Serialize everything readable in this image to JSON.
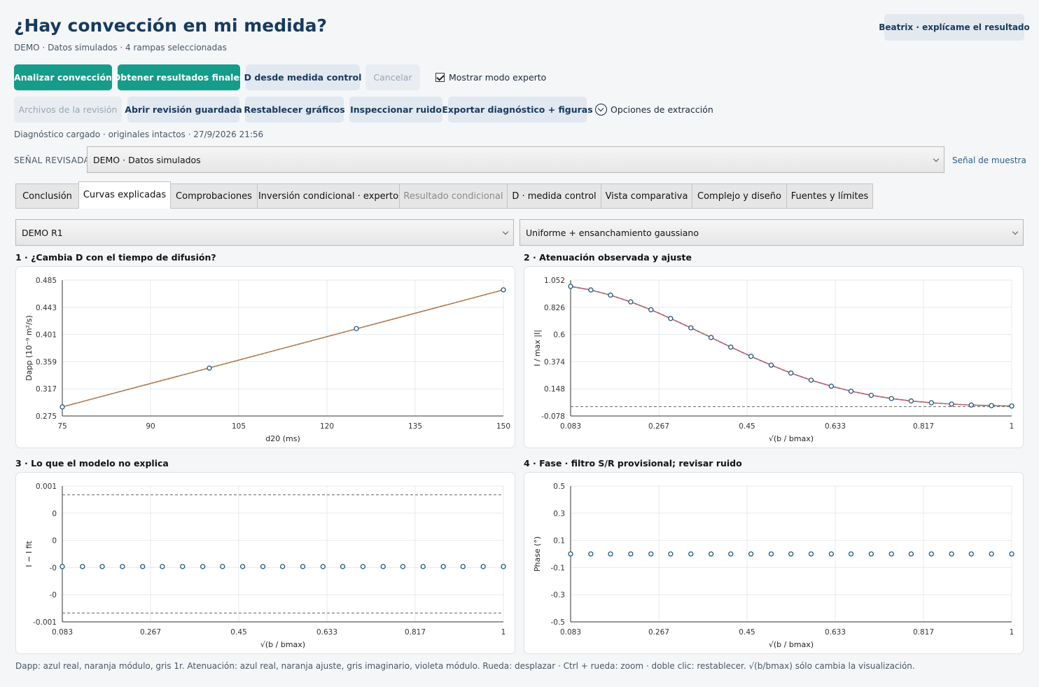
{
  "header": {
    "title": "¿Hay convección en mi medida?",
    "subtitle": "DEMO · Datos simulados · 4 rampas seleccionadas",
    "assistant_button": "Beatrix · explícame el resultado"
  },
  "toolbar1": {
    "analyze": "Analizar convección",
    "final_results": "Obtener resultados finales",
    "d_control": "D desde medida control",
    "cancel": "Cancelar",
    "expert_mode": "Mostrar modo experto",
    "expert_checked": true
  },
  "toolbar2": {
    "review_files": "Archivos de la revisión",
    "open_saved": "Abrir revisión guardada",
    "reset_graphs": "Restablecer gráficos",
    "inspect_noise": "Inspeccionar ruido",
    "export": "Exportar diagnóstico + figuras",
    "extraction_options": "Opciones de extracción"
  },
  "status": "Diagnóstico cargado · originales intactos · 27/9/2026 21:56",
  "signal": {
    "label": "SEÑAL REVISADA",
    "value": "DEMO · Datos simulados",
    "sample_link": "Señal de muestra"
  },
  "tabs": [
    {
      "label": "Conclusión",
      "state": "normal"
    },
    {
      "label": "Curvas explicadas",
      "state": "active"
    },
    {
      "label": "Comprobaciones",
      "state": "normal"
    },
    {
      "label": "Inversión condicional · experto",
      "state": "normal"
    },
    {
      "label": "Resultado condicional",
      "state": "disabled"
    },
    {
      "label": "D · medida control",
      "state": "normal"
    },
    {
      "label": "Vista comparativa",
      "state": "normal"
    },
    {
      "label": "Complejo y diseño",
      "state": "normal"
    },
    {
      "label": "Fuentes y límites",
      "state": "normal"
    }
  ],
  "selectors": {
    "ramp": "DEMO R1",
    "model": "Uniforme + ensanchamiento gaussiano"
  },
  "colors": {
    "primary": "#169c8a",
    "real_blue": "#1f5a7a",
    "orange": "#c9803a",
    "violet": "#9b4f8e",
    "grey": "#666666"
  },
  "chart_data": [
    {
      "panel_title": "1 · ¿Cambia D con el tiempo de difusión?",
      "type": "line",
      "xlabel": "d20 (ms)",
      "ylabel": "Dapp (10⁻⁹ m²/s)",
      "x_ticks": [
        "75",
        "90",
        "105",
        "120",
        "135",
        "150"
      ],
      "y_ticks": [
        "0.485",
        "0.443",
        "0.401",
        "0.359",
        "0.317",
        "0.275"
      ],
      "xlim": [
        75,
        150
      ],
      "ylim": [
        0.275,
        0.485
      ],
      "series": [
        {
          "role": "real",
          "x": [
            75,
            100,
            125,
            150
          ],
          "y": [
            0.289,
            0.349,
            0.41,
            0.47
          ]
        },
        {
          "role": "fit",
          "x": [
            75,
            150
          ],
          "y": [
            0.289,
            0.47
          ]
        }
      ]
    },
    {
      "panel_title": "2 · Atenuación observada y ajuste",
      "type": "line",
      "xlabel": "√(b / bmax)",
      "ylabel": "I / max |I|",
      "x_ticks": [
        "0.083",
        "0.267",
        "0.45",
        "0.633",
        "0.817",
        "1"
      ],
      "y_ticks": [
        "1.052",
        "0.826",
        "0.6",
        "0.374",
        "0.148",
        "-0.078"
      ],
      "xlim": [
        0.083,
        1
      ],
      "ylim": [
        -0.078,
        1.052
      ],
      "imaginary_level": 0.0,
      "series": [
        {
          "role": "real",
          "x": [
            0.083,
            0.125,
            0.166,
            0.208,
            0.25,
            0.291,
            0.333,
            0.375,
            0.416,
            0.458,
            0.5,
            0.541,
            0.583,
            0.625,
            0.666,
            0.708,
            0.75,
            0.791,
            0.833,
            0.875,
            0.916,
            0.958,
            1.0
          ],
          "y": [
            1.0,
            0.97,
            0.927,
            0.871,
            0.806,
            0.733,
            0.655,
            0.575,
            0.495,
            0.418,
            0.345,
            0.279,
            0.22,
            0.17,
            0.128,
            0.094,
            0.067,
            0.047,
            0.032,
            0.021,
            0.013,
            0.008,
            0.005
          ]
        }
      ]
    },
    {
      "panel_title": "3 · Lo que el modelo no explica",
      "type": "scatter",
      "xlabel": "√(b / bmax)",
      "ylabel": "I − I fit",
      "x_ticks": [
        "0.083",
        "0.267",
        "0.45",
        "0.633",
        "0.817",
        "1"
      ],
      "y_ticks": [
        "0.001",
        "0",
        "0",
        "-0",
        "-0",
        "-0.001"
      ],
      "xlim": [
        0.083,
        1
      ],
      "ylim": [
        -0.001,
        0.001
      ],
      "noise_band": [
        0.00087,
        -0.00087
      ],
      "series": [
        {
          "role": "residual",
          "x": [
            0.083,
            0.125,
            0.166,
            0.208,
            0.25,
            0.291,
            0.333,
            0.375,
            0.416,
            0.458,
            0.5,
            0.541,
            0.583,
            0.625,
            0.666,
            0.708,
            0.75,
            0.791,
            0.833,
            0.875,
            0.916,
            0.958,
            1.0
          ],
          "y": [
            0,
            0,
            0,
            0,
            0,
            0,
            0,
            0,
            0,
            0,
            0,
            0,
            0,
            0,
            0,
            0,
            0,
            0,
            0,
            0,
            0,
            0,
            0
          ]
        }
      ]
    },
    {
      "panel_title": "4 · Fase · filtro S/R provisional; revisar ruido",
      "type": "scatter",
      "xlabel": "√(b / bmax)",
      "ylabel": "Phase (°)",
      "x_ticks": [
        "0.083",
        "0.267",
        "0.45",
        "0.633",
        "0.817",
        "1"
      ],
      "y_ticks": [
        "0.5",
        "0.3",
        "0.1",
        "-0.1",
        "-0.3",
        "-0.5"
      ],
      "xlim": [
        0.083,
        1
      ],
      "ylim": [
        -0.5,
        0.5
      ],
      "series": [
        {
          "role": "phase",
          "x": [
            0.083,
            0.125,
            0.166,
            0.208,
            0.25,
            0.291,
            0.333,
            0.375,
            0.416,
            0.458,
            0.5,
            0.541,
            0.583,
            0.625,
            0.666,
            0.708,
            0.75,
            0.791,
            0.833,
            0.875,
            0.916,
            0.958,
            1.0
          ],
          "y": [
            0,
            0,
            0,
            0,
            0,
            0,
            0,
            0,
            0,
            0,
            0,
            0,
            0,
            0,
            0,
            0,
            0,
            0,
            0,
            0,
            0,
            0,
            0
          ]
        }
      ]
    }
  ],
  "footer": "Dapp: azul real, naranja módulo, gris 1r. Atenuación: azul real, naranja ajuste, gris imaginario, violeta módulo. Rueda: desplazar · Ctrl + rueda: zoom · doble clic: restablecer. √(b/bmax) sólo cambia la visualización."
}
